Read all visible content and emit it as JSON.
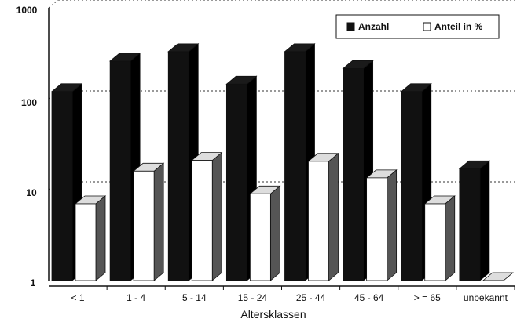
{
  "chart_data": {
    "type": "bar",
    "title": "",
    "xlabel": "Altersklassen",
    "ylabel": "",
    "y_scale": "log",
    "ylim": [
      1,
      1000
    ],
    "yticks": [
      "1",
      "10",
      "100",
      "1000"
    ],
    "grid": "dotted horizontal at 10, 100, 1000",
    "legend_position": "top-right",
    "categories": [
      "< 1",
      "1 - 4",
      "5 - 14",
      "15 - 24",
      "25 - 44",
      "45 - 64",
      "> = 65",
      "unbekannt"
    ],
    "series": [
      {
        "name": "Anzahl",
        "color": "#111111",
        "values": [
          120,
          260,
          330,
          145,
          330,
          215,
          120,
          17
        ]
      },
      {
        "name": "Anteil in %",
        "color": "#ffffff",
        "values": [
          7,
          16,
          21,
          9,
          20.5,
          13.5,
          7,
          1
        ]
      }
    ]
  }
}
